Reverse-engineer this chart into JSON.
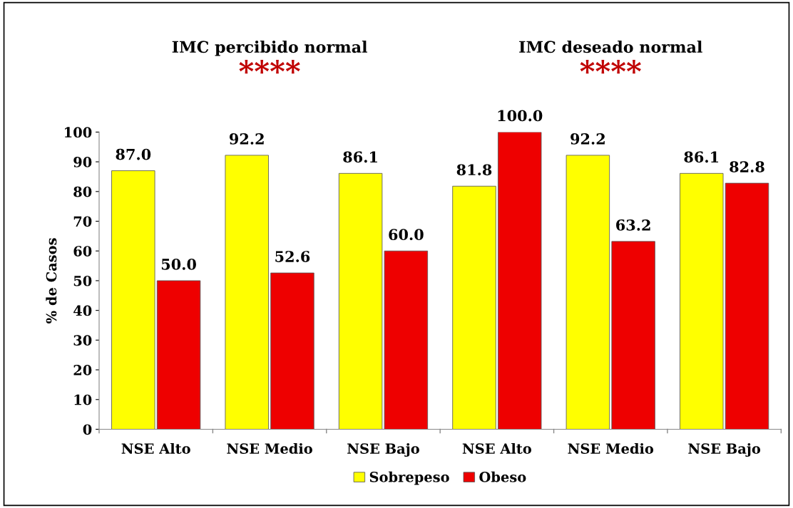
{
  "chart_data": {
    "type": "bar",
    "categories": [
      "NSE Alto",
      "NSE Medio",
      "NSE Bajo",
      "NSE Alto",
      "NSE Medio",
      "NSE Bajo"
    ],
    "series": [
      {
        "name": "Sobrepeso",
        "color": "#ffff00",
        "values": [
          87.0,
          92.2,
          86.1,
          81.8,
          92.2,
          86.1
        ],
        "value_labels": [
          "87.0",
          "92.2",
          "86.1",
          "81.8",
          "92.2",
          "86.1"
        ]
      },
      {
        "name": "Obeso",
        "color": "#ee0000",
        "values": [
          50.0,
          52.6,
          60.0,
          100.0,
          63.2,
          82.8
        ],
        "value_labels": [
          "50.0",
          "52.6",
          "60.0",
          "100.0",
          "63.2",
          "82.8"
        ]
      }
    ],
    "ylabel": "% de Casos",
    "ylim": [
      0,
      100
    ],
    "yticks": [
      0,
      10,
      20,
      30,
      40,
      50,
      60,
      70,
      80,
      90,
      100
    ],
    "annotations": [
      "IMC percibido normal",
      "****",
      "IMC deseado normal",
      "****"
    ],
    "legend": "bottom",
    "grid": false
  }
}
